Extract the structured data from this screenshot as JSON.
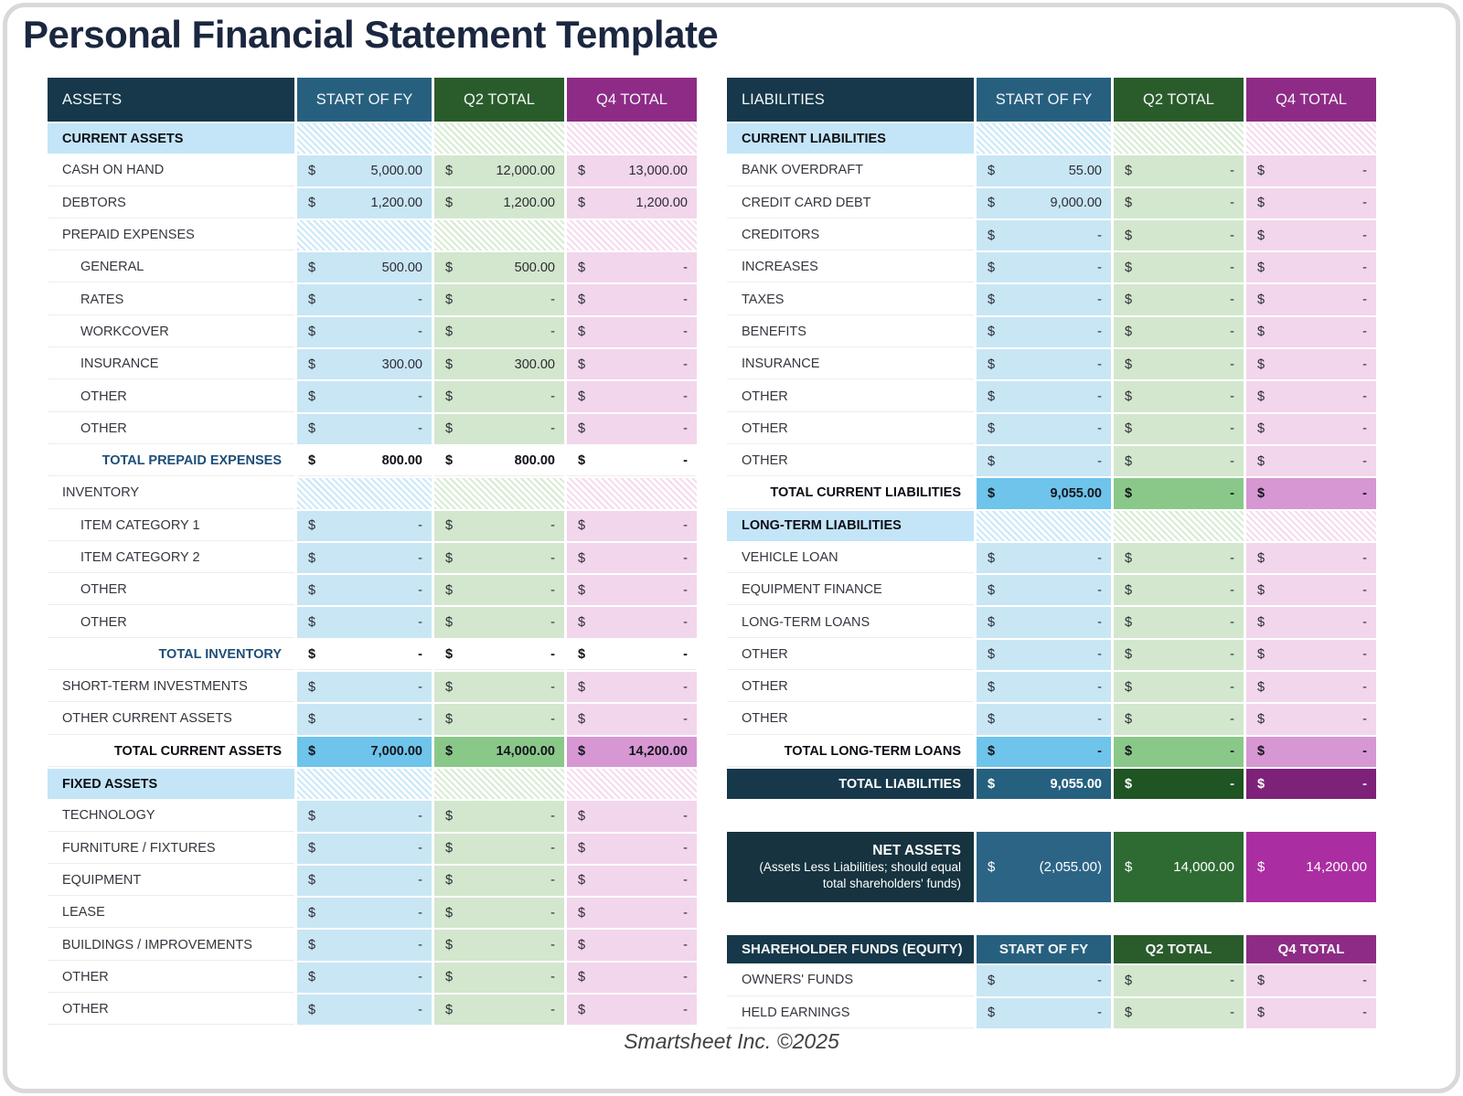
{
  "currency": "$",
  "page": {
    "title": "Personal Financial Statement Template",
    "footer": "Smartsheet Inc. ©2025"
  },
  "colors": {
    "title_navy": "#1b2740",
    "header_navy": "#16384a",
    "header_steel_blue": "#27607f",
    "header_dark_green": "#2a5c2b",
    "header_purple": "#8e2b86",
    "cell_light_blue": "#c9e6f5",
    "cell_light_green": "#d2e7cd",
    "cell_light_pink": "#f2d6eb",
    "section_row_blue": "#c3e5f7",
    "total_row_blue": "#6ec4ea",
    "total_row_green": "#8ac889",
    "total_row_pink": "#d697d2",
    "net_blue": "#2c6486",
    "net_green": "#2e6b33",
    "net_magenta": "#aa2ea2"
  },
  "assets": {
    "header": {
      "label": "ASSETS",
      "cols": [
        "START OF FY",
        "Q2 TOTAL",
        "Q4 TOTAL"
      ]
    },
    "rows": [
      {
        "type": "section",
        "label": "CURRENT ASSETS"
      },
      {
        "type": "item",
        "label": "CASH ON HAND",
        "values": [
          "5,000.00",
          "12,000.00",
          "13,000.00"
        ]
      },
      {
        "type": "item",
        "label": "DEBTORS",
        "values": [
          "1,200.00",
          "1,200.00",
          "1,200.00"
        ]
      },
      {
        "type": "subsection",
        "label": "PREPAID EXPENSES"
      },
      {
        "type": "subitem",
        "label": "GENERAL",
        "values": [
          "500.00",
          "500.00",
          "-"
        ]
      },
      {
        "type": "subitem",
        "label": "RATES",
        "values": [
          "-",
          "-",
          "-"
        ]
      },
      {
        "type": "subitem",
        "label": "WORKCOVER",
        "values": [
          "-",
          "-",
          "-"
        ]
      },
      {
        "type": "subitem",
        "label": "INSURANCE",
        "values": [
          "300.00",
          "300.00",
          "-"
        ]
      },
      {
        "type": "subitem",
        "label": "OTHER",
        "values": [
          "-",
          "-",
          "-"
        ]
      },
      {
        "type": "subitem",
        "label": "OTHER",
        "values": [
          "-",
          "-",
          "-"
        ]
      },
      {
        "type": "subtotal",
        "label": "TOTAL PREPAID EXPENSES",
        "values": [
          "800.00",
          "800.00",
          "-"
        ]
      },
      {
        "type": "subsection",
        "label": "INVENTORY"
      },
      {
        "type": "subitem",
        "label": "ITEM CATEGORY 1",
        "values": [
          "-",
          "-",
          "-"
        ]
      },
      {
        "type": "subitem",
        "label": "ITEM CATEGORY 2",
        "values": [
          "-",
          "-",
          "-"
        ]
      },
      {
        "type": "subitem",
        "label": "OTHER",
        "values": [
          "-",
          "-",
          "-"
        ]
      },
      {
        "type": "subitem",
        "label": "OTHER",
        "values": [
          "-",
          "-",
          "-"
        ]
      },
      {
        "type": "subtotal",
        "label": "TOTAL INVENTORY",
        "values": [
          "-",
          "-",
          "-"
        ]
      },
      {
        "type": "item",
        "label": "SHORT-TERM INVESTMENTS",
        "values": [
          "-",
          "-",
          "-"
        ]
      },
      {
        "type": "item",
        "label": "OTHER CURRENT ASSETS",
        "values": [
          "-",
          "-",
          "-"
        ]
      },
      {
        "type": "total",
        "label": "TOTAL CURRENT ASSETS",
        "values": [
          "7,000.00",
          "14,000.00",
          "14,200.00"
        ]
      },
      {
        "type": "section",
        "label": "FIXED ASSETS"
      },
      {
        "type": "item",
        "label": "TECHNOLOGY",
        "values": [
          "-",
          "-",
          "-"
        ]
      },
      {
        "type": "item",
        "label": "FURNITURE / FIXTURES",
        "values": [
          "-",
          "-",
          "-"
        ]
      },
      {
        "type": "item",
        "label": "EQUIPMENT",
        "values": [
          "-",
          "-",
          "-"
        ]
      },
      {
        "type": "item",
        "label": "LEASE",
        "values": [
          "-",
          "-",
          "-"
        ]
      },
      {
        "type": "item",
        "label": "BUILDINGS / IMPROVEMENTS",
        "values": [
          "-",
          "-",
          "-"
        ]
      },
      {
        "type": "item",
        "label": "OTHER",
        "values": [
          "-",
          "-",
          "-"
        ]
      },
      {
        "type": "item",
        "label": "OTHER",
        "values": [
          "-",
          "-",
          "-"
        ]
      }
    ]
  },
  "liabilities": {
    "header": {
      "label": "LIABILITIES",
      "cols": [
        "START OF FY",
        "Q2 TOTAL",
        "Q4 TOTAL"
      ]
    },
    "rows": [
      {
        "type": "section",
        "label": "CURRENT LIABILITIES"
      },
      {
        "type": "item",
        "label": "BANK OVERDRAFT",
        "values": [
          "55.00",
          "-",
          "-"
        ]
      },
      {
        "type": "item",
        "label": "CREDIT CARD DEBT",
        "values": [
          "9,000.00",
          "-",
          "-"
        ]
      },
      {
        "type": "item",
        "label": "CREDITORS",
        "values": [
          "-",
          "-",
          "-"
        ]
      },
      {
        "type": "item",
        "label": "INCREASES",
        "values": [
          "-",
          "-",
          "-"
        ]
      },
      {
        "type": "item",
        "label": "TAXES",
        "values": [
          "-",
          "-",
          "-"
        ]
      },
      {
        "type": "item",
        "label": "BENEFITS",
        "values": [
          "-",
          "-",
          "-"
        ]
      },
      {
        "type": "item",
        "label": "INSURANCE",
        "values": [
          "-",
          "-",
          "-"
        ]
      },
      {
        "type": "item",
        "label": "OTHER",
        "values": [
          "-",
          "-",
          "-"
        ]
      },
      {
        "type": "item",
        "label": "OTHER",
        "values": [
          "-",
          "-",
          "-"
        ]
      },
      {
        "type": "item",
        "label": "OTHER",
        "values": [
          "-",
          "-",
          "-"
        ]
      },
      {
        "type": "total",
        "label": "TOTAL CURRENT LIABILITIES",
        "values": [
          "9,055.00",
          "-",
          "-"
        ]
      },
      {
        "type": "section",
        "label": "LONG-TERM LIABILITIES"
      },
      {
        "type": "item",
        "label": "VEHICLE LOAN",
        "values": [
          "-",
          "-",
          "-"
        ]
      },
      {
        "type": "item",
        "label": "EQUIPMENT FINANCE",
        "values": [
          "-",
          "-",
          "-"
        ]
      },
      {
        "type": "item",
        "label": "LONG-TERM LOANS",
        "values": [
          "-",
          "-",
          "-"
        ]
      },
      {
        "type": "item",
        "label": "OTHER",
        "values": [
          "-",
          "-",
          "-"
        ]
      },
      {
        "type": "item",
        "label": "OTHER",
        "values": [
          "-",
          "-",
          "-"
        ]
      },
      {
        "type": "item",
        "label": "OTHER",
        "values": [
          "-",
          "-",
          "-"
        ]
      },
      {
        "type": "total",
        "label": "TOTAL LONG-TERM LOANS",
        "values": [
          "-",
          "-",
          "-"
        ]
      },
      {
        "type": "grandtotal",
        "label": "TOTAL LIABILITIES",
        "values": [
          "9,055.00",
          "-",
          "-"
        ]
      }
    ]
  },
  "net_assets": {
    "label": "NET ASSETS",
    "sublabel": "(Assets Less Liabilities; should equal total shareholders' funds)",
    "values": [
      "(2,055.00)",
      "14,000.00",
      "14,200.00"
    ]
  },
  "equity": {
    "header": {
      "label": "SHAREHOLDER FUNDS (EQUITY)",
      "cols": [
        "START OF FY",
        "Q2 TOTAL",
        "Q4 TOTAL"
      ]
    },
    "rows": [
      {
        "type": "item",
        "label": "OWNERS' FUNDS",
        "values": [
          "-",
          "-",
          "-"
        ]
      },
      {
        "type": "item",
        "label": "HELD EARNINGS",
        "values": [
          "-",
          "-",
          "-"
        ]
      }
    ]
  }
}
